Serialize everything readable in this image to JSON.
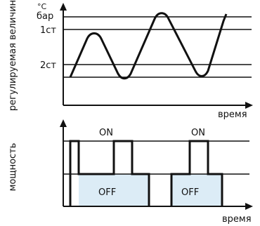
{
  "top_chart": {
    "ylabel": "регулируемая величина",
    "unit_top": "°С",
    "unit_bottom": "бар",
    "level_1": "1ст",
    "level_2": "2ст",
    "xlabel": "время"
  },
  "bottom_chart": {
    "ylabel": "мощность",
    "on_label": "ON",
    "off_label": "OFF",
    "xlabel": "время"
  }
}
